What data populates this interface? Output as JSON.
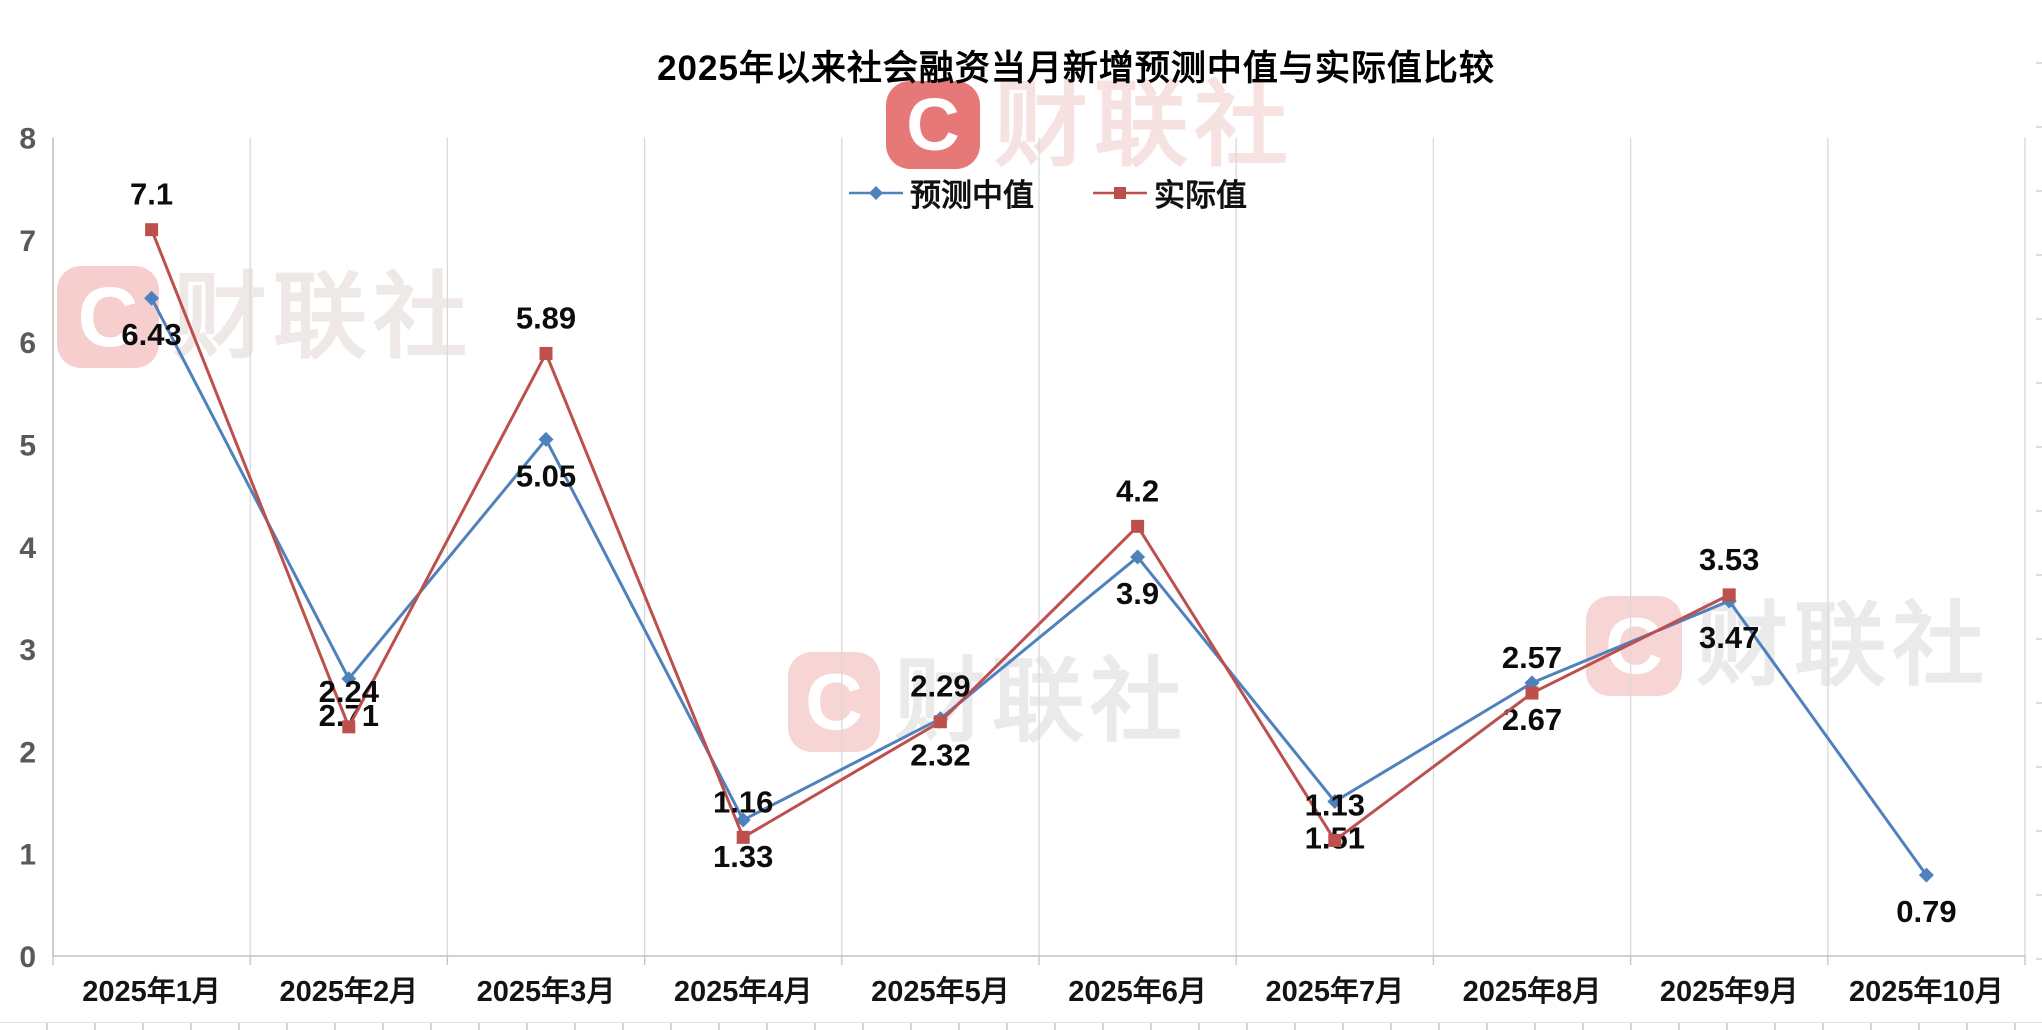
{
  "title": "2025年以来社会融资当月新增预测中值与实际值比较",
  "watermark": {
    "logo_letter": "C",
    "brand_text": "财联社"
  },
  "colors": {
    "forecast_blue": "#4f81bd",
    "actual_red": "#bd504d",
    "gridline": "#d9d9d9",
    "axis": "#c2c2c2",
    "data_label": "#0c0c0c",
    "y_tick": "#595959",
    "watermark_red": "#de4444"
  },
  "chart_data": {
    "type": "line",
    "title": "2025年以来社会融资当月新增预测中值与实际值比较",
    "categories": [
      "2025年1月",
      "2025年2月",
      "2025年3月",
      "2025年4月",
      "2025年5月",
      "2025年6月",
      "2025年7月",
      "2025年8月",
      "2025年9月",
      "2025年10月"
    ],
    "xlabel": "",
    "ylabel": "",
    "ylim": [
      0,
      8
    ],
    "yticks": [
      "0",
      "1",
      "2",
      "3",
      "4",
      "5",
      "6",
      "7",
      "8"
    ],
    "grid": "vertical-only",
    "legend_position": "top-center",
    "series": [
      {
        "name": "预测中值",
        "color": "#4f81bd",
        "marker": "diamond",
        "label_position": "below",
        "values": [
          6.43,
          2.71,
          5.05,
          1.33,
          2.32,
          3.9,
          1.51,
          2.67,
          3.47,
          0.79
        ],
        "labels": [
          "6.43",
          "2.71",
          "5.05",
          "1.33",
          "2.32",
          "3.9",
          "1.51",
          "2.67",
          "3.47",
          "0.79"
        ]
      },
      {
        "name": "实际值",
        "color": "#bd504d",
        "marker": "square",
        "label_position": "above",
        "values": [
          7.1,
          2.24,
          5.89,
          1.16,
          2.29,
          4.2,
          1.13,
          2.57,
          3.53
        ],
        "labels": [
          "7.1",
          "2.24",
          "5.89",
          "1.16",
          "2.29",
          "4.2",
          "1.13",
          "2.57",
          "3.53"
        ]
      }
    ]
  }
}
